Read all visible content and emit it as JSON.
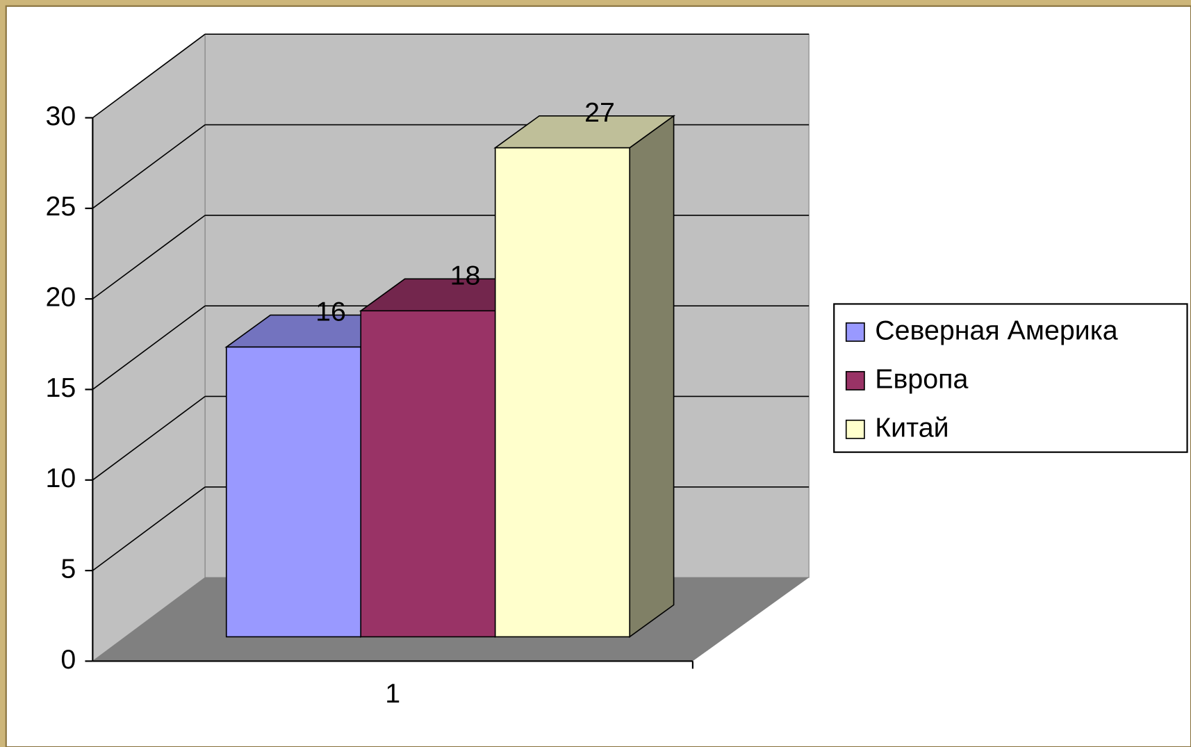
{
  "chart_data": {
    "type": "bar",
    "categories": [
      "1"
    ],
    "series": [
      {
        "name": "Северная Америка",
        "color": "#9999ff",
        "values": [
          16
        ]
      },
      {
        "name": "Европа",
        "color": "#993366",
        "values": [
          18
        ]
      },
      {
        "name": "Китай",
        "color": "#ffffcc",
        "values": [
          27
        ]
      }
    ],
    "ylim": [
      0,
      30
    ],
    "yticks": [
      0,
      5,
      10,
      15,
      20,
      25,
      30
    ],
    "grid": true,
    "legend": "right"
  }
}
